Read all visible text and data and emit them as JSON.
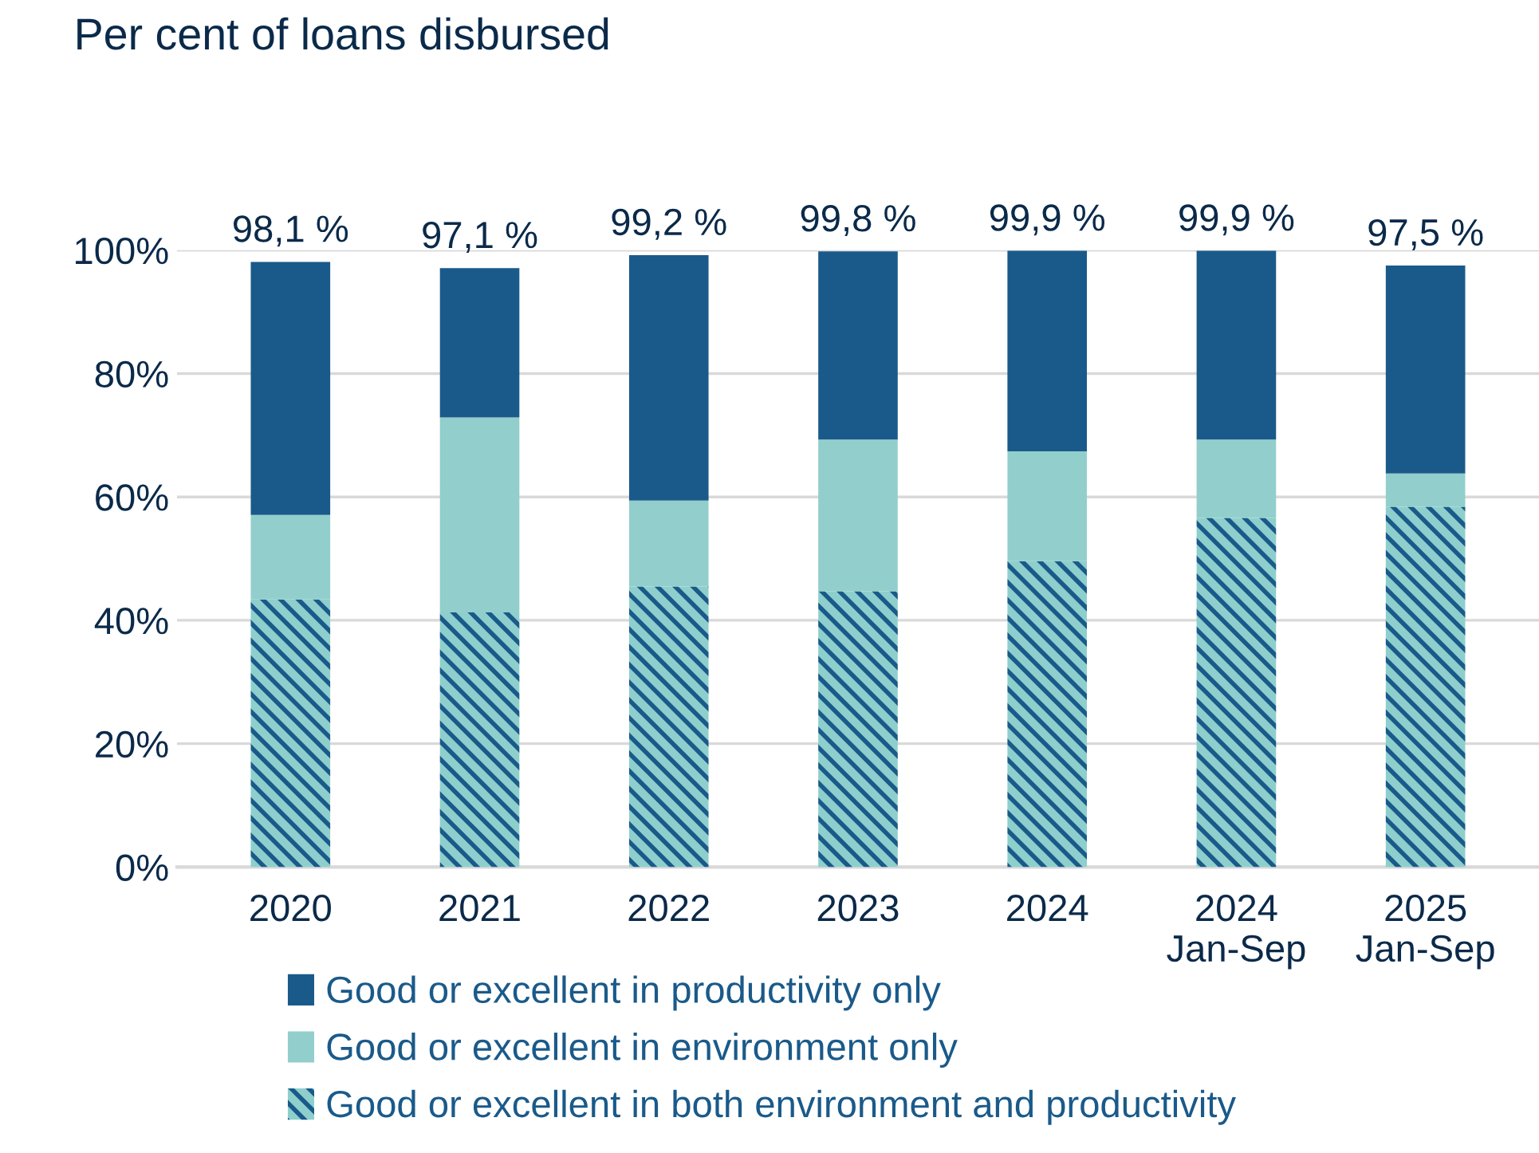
{
  "chart_data": {
    "type": "bar",
    "title": "Per cent of loans disbursed",
    "stacked": true,
    "categories": [
      "2020",
      "2021",
      "2022",
      "2023",
      "2024",
      "2024\nJan-Sep",
      "2025\nJan-Sep"
    ],
    "series": [
      {
        "name": "Good or excellent in both environment and productivity",
        "color": "#8ecfcd",
        "values": [
          43.4,
          41.3,
          45.5,
          44.7,
          49.6,
          56.6,
          58.4
        ]
      },
      {
        "name": "Good or excellent in environment only",
        "color": "#92cfcc",
        "values": [
          13.7,
          31.6,
          13.9,
          24.6,
          17.8,
          12.7,
          5.4
        ]
      },
      {
        "name": "Good or excellent in productivity only",
        "color": "#1a5a8a",
        "values": [
          41.0,
          24.2,
          39.8,
          30.5,
          32.5,
          30.6,
          33.7
        ]
      }
    ],
    "totals": [
      "98,1 %",
      "97,1 %",
      "99,2 %",
      "99,8 %",
      "99,9 %",
      "99,9 %",
      "97,5 %"
    ],
    "ylim": [
      0,
      100
    ],
    "yticks": [
      {
        "value": 0,
        "label": "0%"
      },
      {
        "value": 20,
        "label": "20%"
      },
      {
        "value": 40,
        "label": "40%"
      },
      {
        "value": 60,
        "label": "60%"
      },
      {
        "value": 80,
        "label": "80%"
      },
      {
        "value": 100,
        "label": "100%"
      }
    ],
    "grid": "y",
    "legend": "bottom"
  }
}
